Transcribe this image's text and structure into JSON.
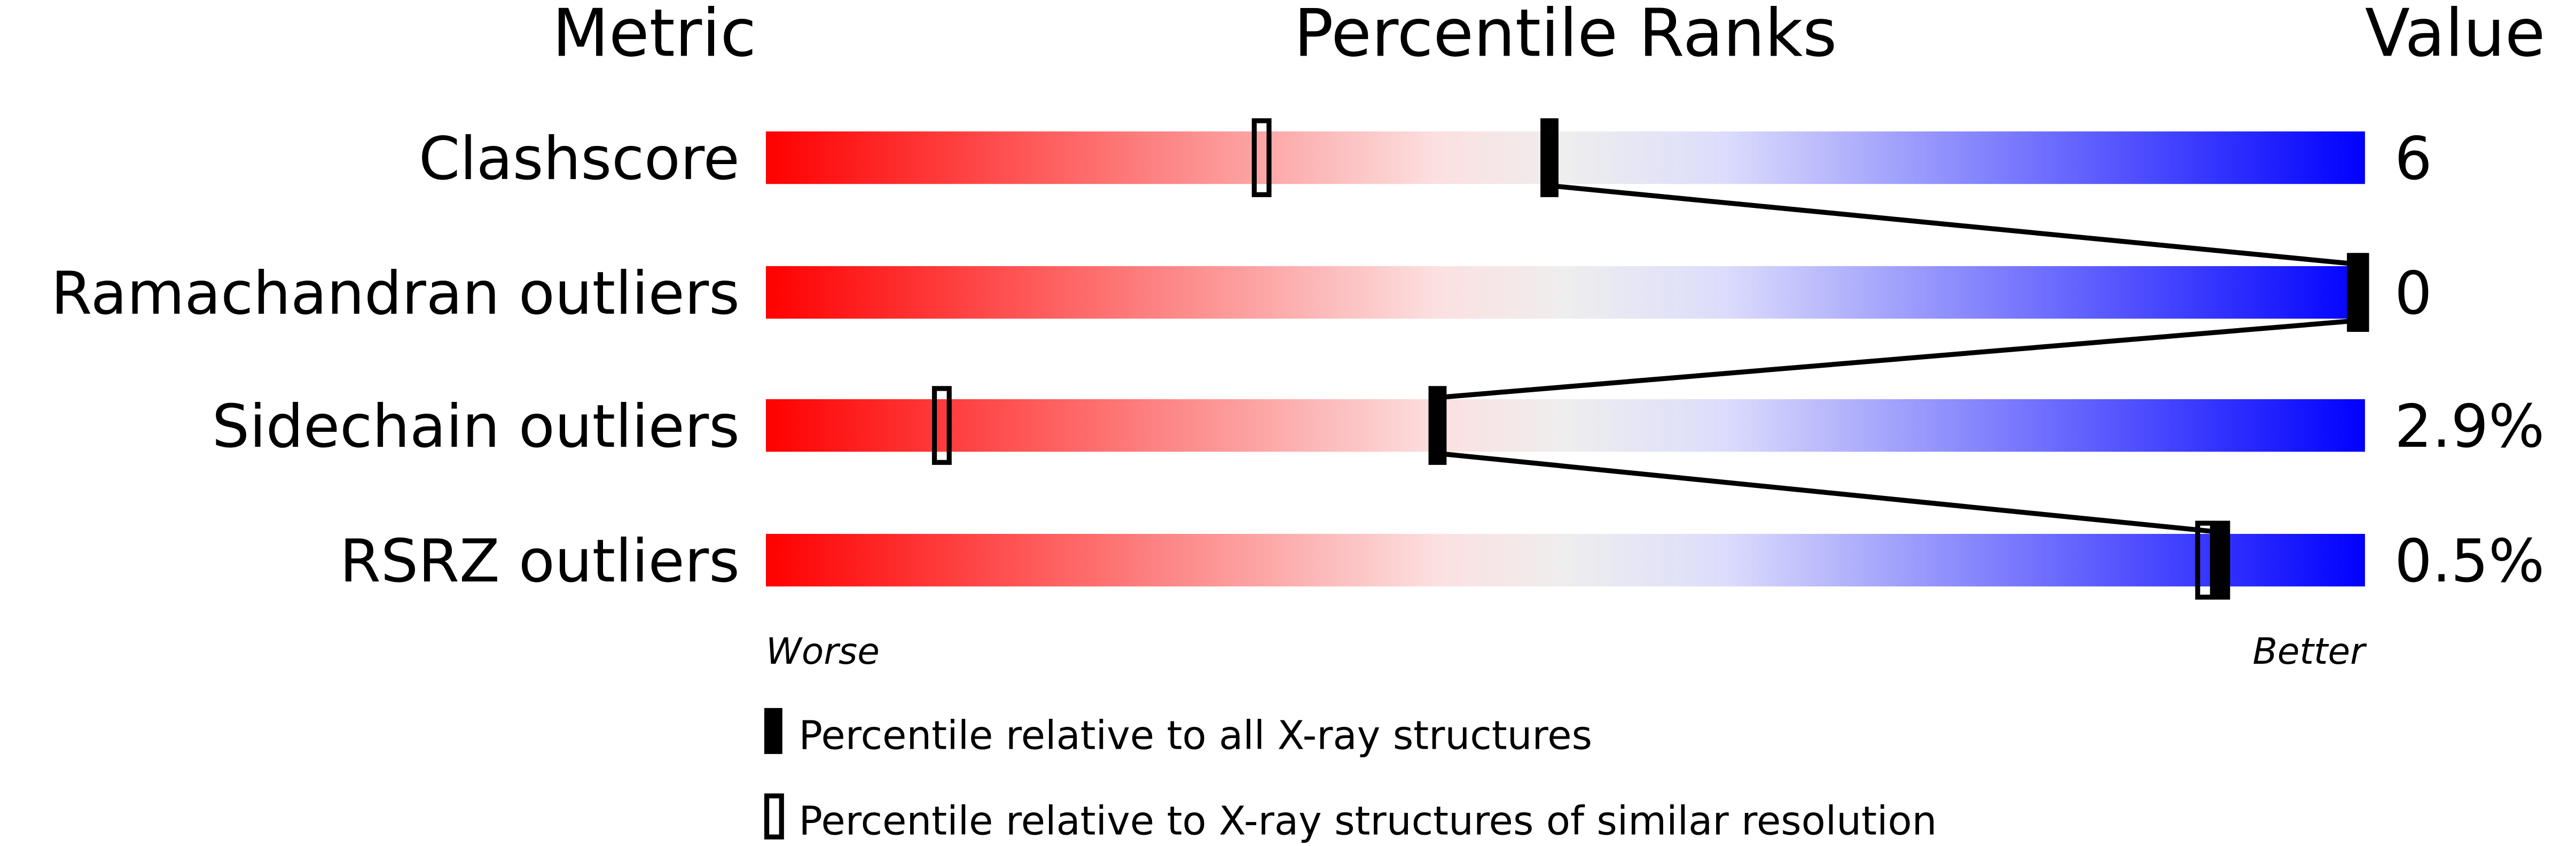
{
  "chart_data": {
    "type": "percentile-ranks",
    "headers": {
      "metric": "Metric",
      "ranks": "Percentile Ranks",
      "value": "Value"
    },
    "xlim": [
      0,
      100
    ],
    "rows": [
      {
        "metric": "Clashscore",
        "value": "6",
        "percentile_all": 49,
        "percentile_similar": 31
      },
      {
        "metric": "Ramachandran outliers",
        "value": "0",
        "percentile_all": 100,
        "percentile_similar": 100
      },
      {
        "metric": "Sidechain outliers",
        "value": "2.9%",
        "percentile_all": 42,
        "percentile_similar": 11
      },
      {
        "metric": "RSRZ outliers",
        "value": "0.5%",
        "percentile_all": 91,
        "percentile_similar": 90
      }
    ],
    "scale_left": "Worse",
    "scale_right": "Better",
    "legend": [
      {
        "marker": "filled",
        "label": "Percentile relative to all X-ray structures"
      },
      {
        "marker": "hollow",
        "label": "Percentile relative to X-ray structures of similar resolution"
      }
    ],
    "colors": {
      "worse": "#ff0000",
      "middle": "#eeeeee",
      "better": "#0000ff",
      "marker": "#000000"
    }
  }
}
